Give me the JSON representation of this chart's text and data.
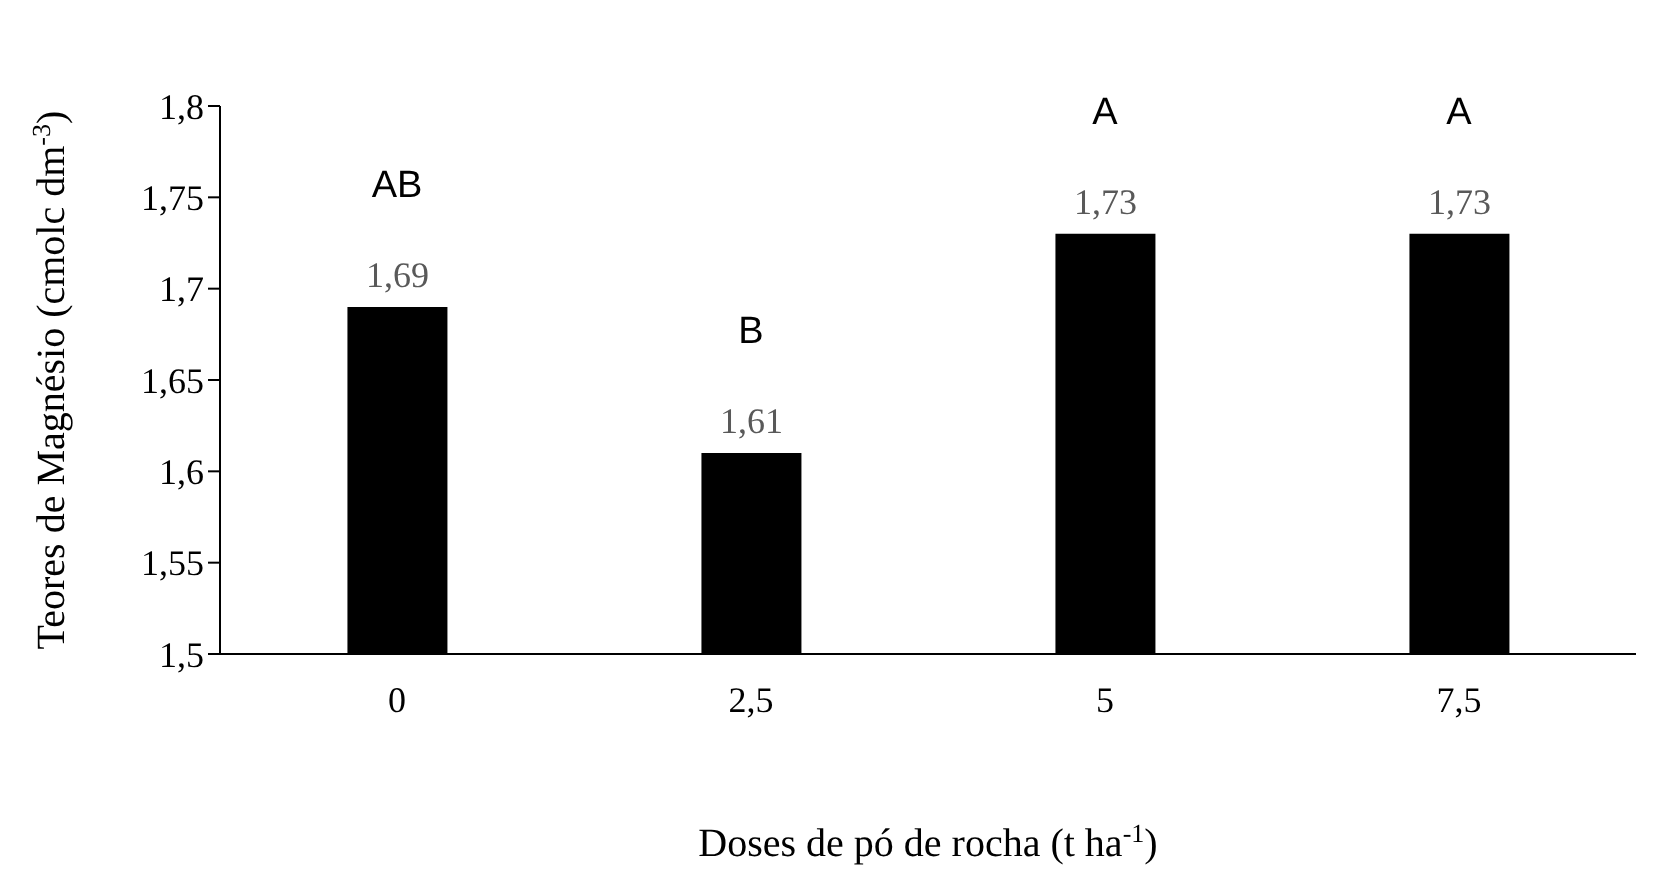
{
  "chart_data": {
    "type": "bar",
    "xlabel": "Doses de pó de rocha (t ha$^{-1}$)",
    "ylabel": "Teores de Magnésio (cmolc dm$^{-3}$)",
    "categories": [
      "0",
      "2,5",
      "5",
      "7,5"
    ],
    "values": [
      1.69,
      1.61,
      1.73,
      1.73
    ],
    "value_labels": [
      "1,69",
      "1,61",
      "1,73",
      "1,73"
    ],
    "color": "#000000",
    "ylim": [
      1.5,
      1.8
    ],
    "yticks": [
      {
        "value": 1.5,
        "label": "1,5"
      },
      {
        "value": 1.55,
        "label": "1,55"
      },
      {
        "value": 1.6,
        "label": "1,6"
      },
      {
        "value": 1.65,
        "label": "1,65"
      },
      {
        "value": 1.7,
        "label": "1,7"
      },
      {
        "value": 1.75,
        "label": "1,75"
      },
      {
        "value": 1.8,
        "label": "1,8"
      }
    ],
    "grid": false,
    "legend": false,
    "annotations": [
      "AB",
      "B",
      "A",
      "A"
    ]
  }
}
